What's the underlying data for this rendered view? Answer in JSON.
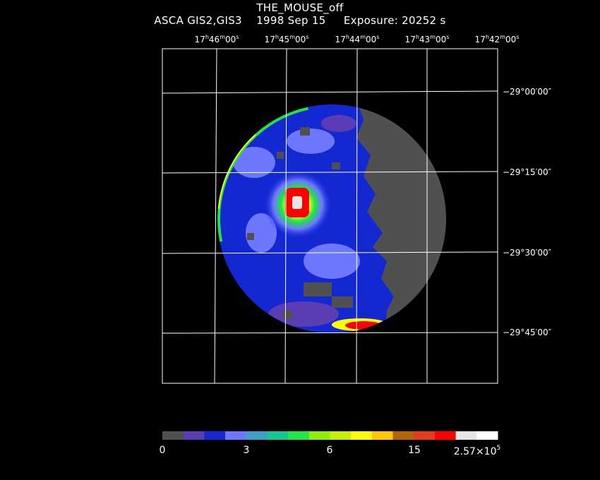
{
  "header": {
    "object": "THE_MOUSE_off",
    "instrument": "ASCA GIS2,GIS3",
    "date": "1998 Sep 15",
    "exposure": "Exposure: 20252 s"
  },
  "ra_ticks": [
    {
      "h": "17",
      "m": "46",
      "s": "00"
    },
    {
      "h": "17",
      "m": "45",
      "s": "00"
    },
    {
      "h": "17",
      "m": "44",
      "s": "00"
    },
    {
      "h": "17",
      "m": "43",
      "s": "00"
    },
    {
      "h": "17",
      "m": "42",
      "s": "00"
    }
  ],
  "dec_ticks": [
    "−29°00′00″",
    "−29°15′00″",
    "−29°30′00″",
    "−29°45′00″"
  ],
  "colorbar": {
    "colors": [
      "#505050",
      "#5a3cb4",
      "#1428d2",
      "#6e78ff",
      "#3ca0c8",
      "#14c896",
      "#1ee646",
      "#8cf000",
      "#c8f000",
      "#ffff00",
      "#ffc800",
      "#b46400",
      "#e63c1e",
      "#ff0000",
      "#e6e6e6",
      "#ffffff"
    ],
    "labels": {
      "l0": "0",
      "l1": "3",
      "l2": "6",
      "l3": "15",
      "l4_base": "2.57×10",
      "l4_exp": "5"
    }
  }
}
